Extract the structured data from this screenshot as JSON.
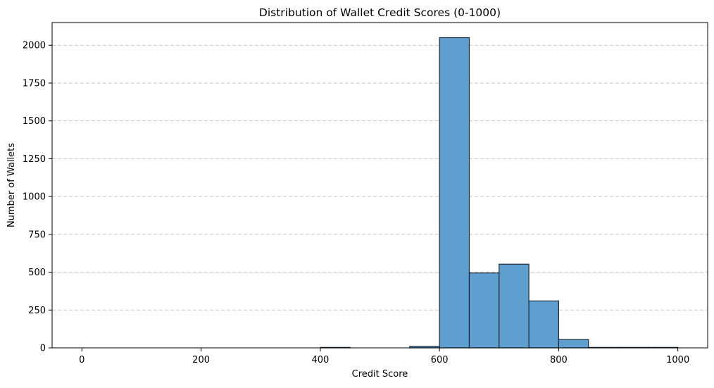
{
  "chart_data": {
    "type": "bar",
    "subtype": "histogram",
    "title": "Distribution of Wallet Credit Scores (0-1000)",
    "xlabel": "Credit Score",
    "ylabel": "Number of Wallets",
    "xlim": [
      -50,
      1050
    ],
    "ylim": [
      0,
      2150
    ],
    "xticks": [
      0,
      200,
      400,
      600,
      800,
      1000
    ],
    "yticks": [
      0,
      250,
      500,
      750,
      1000,
      1250,
      1500,
      1750,
      2000
    ],
    "grid": {
      "axis": "y",
      "style": "dashed",
      "color": "#c8c8c8"
    },
    "bar_color": "#5f9fcf",
    "bar_edge_color": "#1a2a3a",
    "bins": [
      {
        "start": 0,
        "end": 50,
        "count": 0
      },
      {
        "start": 50,
        "end": 100,
        "count": 0
      },
      {
        "start": 100,
        "end": 150,
        "count": 0
      },
      {
        "start": 150,
        "end": 200,
        "count": 0
      },
      {
        "start": 200,
        "end": 250,
        "count": 0
      },
      {
        "start": 250,
        "end": 300,
        "count": 0
      },
      {
        "start": 300,
        "end": 350,
        "count": 0
      },
      {
        "start": 350,
        "end": 400,
        "count": 0
      },
      {
        "start": 400,
        "end": 450,
        "count": 3
      },
      {
        "start": 450,
        "end": 500,
        "count": 0
      },
      {
        "start": 500,
        "end": 550,
        "count": 0
      },
      {
        "start": 550,
        "end": 600,
        "count": 10
      },
      {
        "start": 600,
        "end": 650,
        "count": 2050
      },
      {
        "start": 650,
        "end": 700,
        "count": 495
      },
      {
        "start": 700,
        "end": 750,
        "count": 553
      },
      {
        "start": 750,
        "end": 800,
        "count": 310
      },
      {
        "start": 800,
        "end": 850,
        "count": 55
      },
      {
        "start": 850,
        "end": 900,
        "count": 3
      },
      {
        "start": 900,
        "end": 950,
        "count": 3
      },
      {
        "start": 950,
        "end": 1000,
        "count": 3
      }
    ]
  }
}
